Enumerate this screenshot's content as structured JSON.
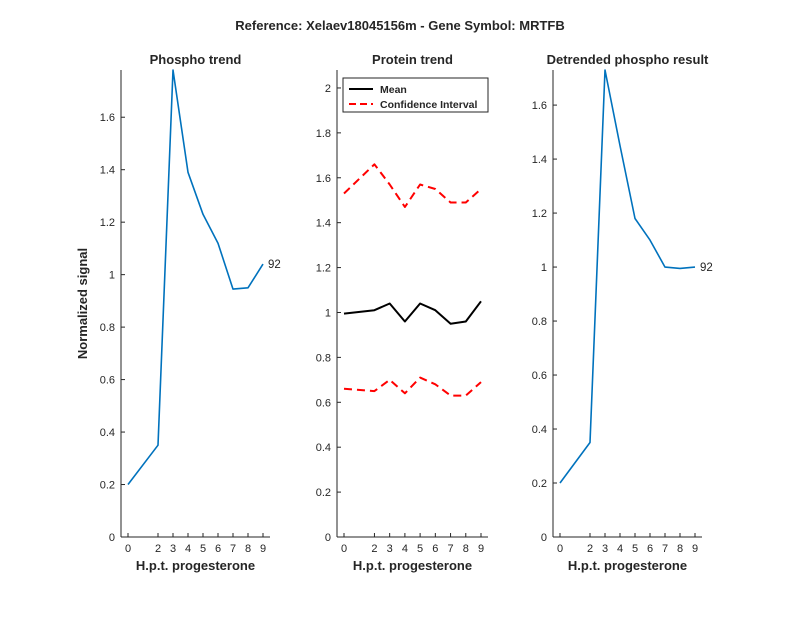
{
  "figure_title": "Reference:  Xelaev18045156m - Gene Symbol:  MRTFB",
  "colors": {
    "phospho": "#0072BD",
    "mean": "#000000",
    "ci": "#FF0000",
    "axis": "#262626"
  },
  "chart_data": [
    {
      "type": "line",
      "title": "Phospho trend",
      "xlabel": "H.p.t. progesterone",
      "ylabel": "Normalized signal",
      "x": [
        0,
        2,
        3,
        4,
        5,
        6,
        7,
        8,
        9
      ],
      "xticks": [
        "0",
        "2",
        "3",
        "4",
        "5",
        "6",
        "7",
        "8",
        "9"
      ],
      "ylim": [
        0,
        1.78
      ],
      "yticks": [
        "0",
        "0.2",
        "0.4",
        "0.6",
        "0.8",
        "1",
        "1.2",
        "1.4",
        "1.6"
      ],
      "series": [
        {
          "values": [
            0.2,
            0.35,
            1.78,
            1.39,
            1.23,
            1.12,
            0.945,
            0.95,
            1.04
          ],
          "color": "#0072BD",
          "style": "solid"
        }
      ],
      "end_label": "92",
      "grid": false
    },
    {
      "type": "line",
      "title": "Protein trend",
      "xlabel": "H.p.t. progesterone",
      "ylabel": "",
      "x": [
        0,
        2,
        3,
        4,
        5,
        6,
        7,
        8,
        9
      ],
      "xticks": [
        "0",
        "2",
        "3",
        "4",
        "5",
        "6",
        "7",
        "8",
        "9"
      ],
      "ylim": [
        0,
        2.08
      ],
      "yticks": [
        "0",
        "0.2",
        "0.4",
        "0.6",
        "0.8",
        "1",
        "1.2",
        "1.4",
        "1.6",
        "1.8",
        "2"
      ],
      "series": [
        {
          "name": "Mean",
          "values": [
            0.995,
            1.01,
            1.04,
            0.96,
            1.04,
            1.01,
            0.95,
            0.96,
            1.05
          ],
          "color": "#000000",
          "style": "solid"
        },
        {
          "name": "Confidence Interval",
          "values": [
            1.53,
            1.66,
            1.57,
            1.47,
            1.57,
            1.55,
            1.49,
            1.49,
            1.55
          ],
          "color": "#FF0000",
          "style": "dashed"
        },
        {
          "values": [
            0.66,
            0.65,
            0.7,
            0.64,
            0.71,
            0.68,
            0.63,
            0.63,
            0.69
          ],
          "color": "#FF0000",
          "style": "dashed"
        }
      ],
      "legend": {
        "entries": [
          "Mean",
          "Confidence Interval"
        ],
        "placement": "top-left"
      },
      "grid": false
    },
    {
      "type": "line",
      "title": "Detrended phospho result",
      "xlabel": "H.p.t. progesterone",
      "ylabel": "",
      "x": [
        0,
        2,
        3,
        4,
        5,
        6,
        7,
        8,
        9
      ],
      "xticks": [
        "0",
        "2",
        "3",
        "4",
        "5",
        "6",
        "7",
        "8",
        "9"
      ],
      "ylim": [
        0,
        1.73
      ],
      "yticks": [
        "0",
        "0.2",
        "0.4",
        "0.6",
        "0.8",
        "1",
        "1.2",
        "1.4",
        "1.6"
      ],
      "series": [
        {
          "values": [
            0.2,
            0.35,
            1.73,
            1.45,
            1.18,
            1.1,
            1.0,
            0.995,
            1.0
          ],
          "color": "#0072BD",
          "style": "solid"
        }
      ],
      "end_label": "92",
      "grid": false
    }
  ]
}
